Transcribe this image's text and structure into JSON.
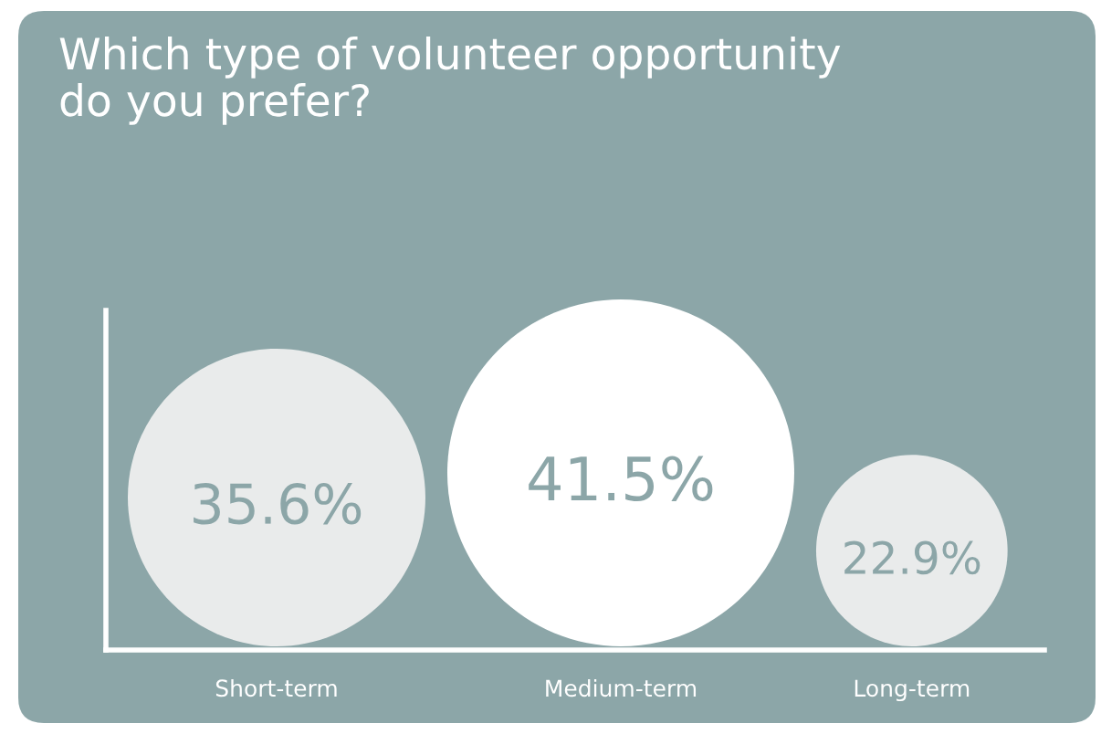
{
  "chart_data": {
    "type": "other",
    "title": "Which type of volunteer opportunity\ndo you prefer?",
    "categories": [
      "Short-term",
      "Medium-term",
      "Long-term"
    ],
    "values": [
      35.6,
      41.5,
      22.9
    ],
    "value_labels": [
      "35.6%",
      "41.5%",
      "22.9%"
    ],
    "colors": [
      "#e9ebeb",
      "#ffffff",
      "#e9ebeb"
    ]
  }
}
